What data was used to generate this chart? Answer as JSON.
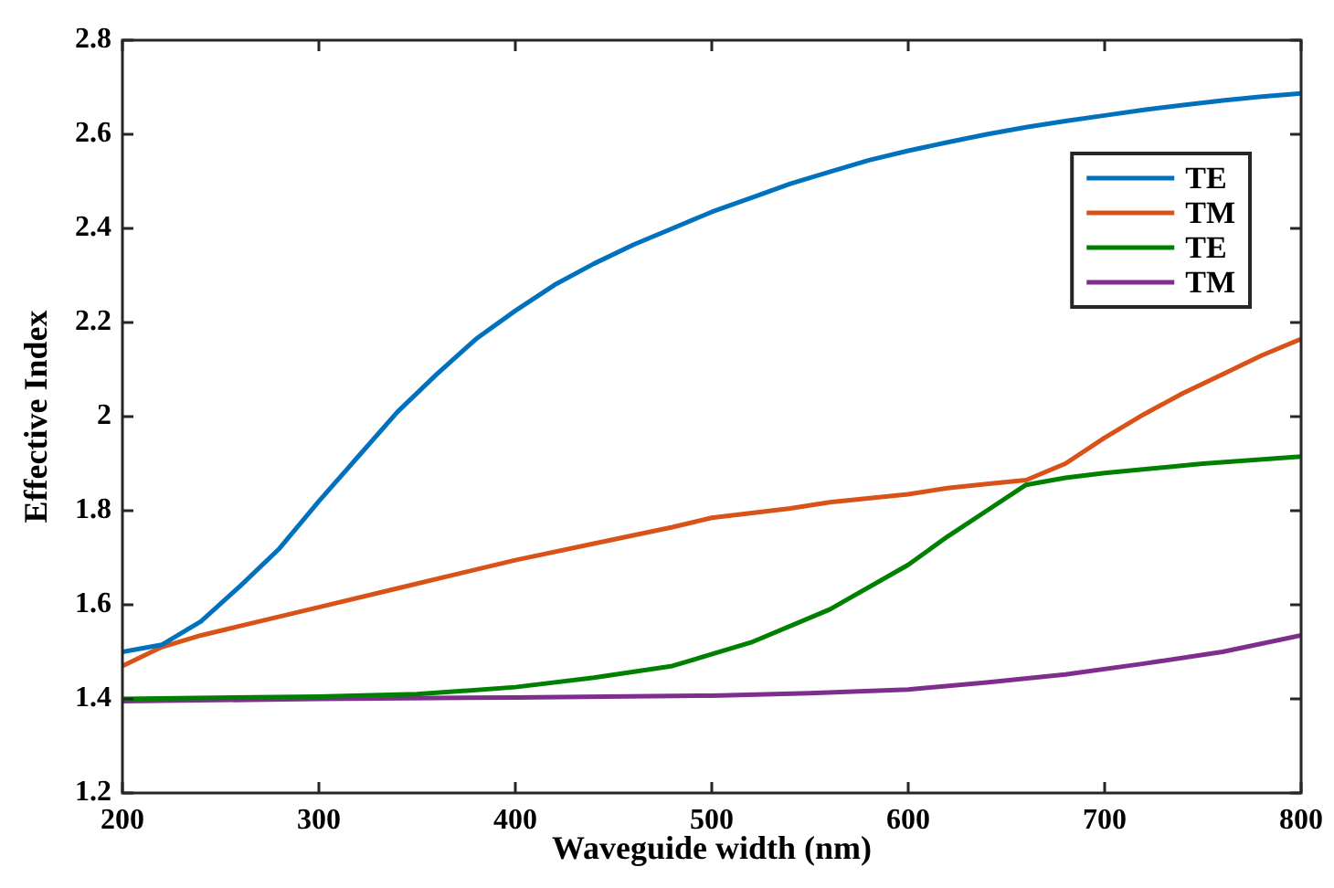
{
  "chart_data": {
    "type": "line",
    "xlabel": "Waveguide width (nm)",
    "ylabel": "Effective Index",
    "xlim": [
      200,
      800
    ],
    "xticks": [
      200,
      300,
      400,
      500,
      600,
      700,
      800
    ],
    "ylim": [
      1.2,
      2.8
    ],
    "yticks": [
      1.2,
      1.4,
      1.6,
      1.8,
      2,
      2.2,
      2.4,
      2.6,
      2.8
    ],
    "grid": false,
    "legend": "top right",
    "marker": "none",
    "line_style": "solid",
    "series": [
      {
        "name": "TE",
        "color": "#0072bd",
        "x": [
          200,
          220,
          240,
          260,
          280,
          300,
          320,
          340,
          360,
          380,
          400,
          420,
          440,
          460,
          480,
          500,
          520,
          540,
          560,
          580,
          600,
          620,
          640,
          660,
          680,
          700,
          720,
          740,
          760,
          780,
          800
        ],
        "values": [
          1.5,
          1.515,
          1.565,
          1.64,
          1.72,
          1.82,
          1.915,
          2.01,
          2.09,
          2.165,
          2.225,
          2.28,
          2.325,
          2.365,
          2.4,
          2.435,
          2.465,
          2.495,
          2.52,
          2.545,
          2.565,
          2.583,
          2.6,
          2.615,
          2.628,
          2.64,
          2.652,
          2.662,
          2.672,
          2.68,
          2.687
        ]
      },
      {
        "name": "TM",
        "color": "#d95319",
        "x": [
          200,
          220,
          240,
          260,
          280,
          300,
          340,
          400,
          440,
          480,
          500,
          540,
          560,
          600,
          620,
          640,
          660,
          680,
          700,
          720,
          740,
          760,
          780,
          800
        ],
        "values": [
          1.47,
          1.51,
          1.535,
          1.555,
          1.575,
          1.595,
          1.635,
          1.695,
          1.73,
          1.765,
          1.785,
          1.805,
          1.818,
          1.835,
          1.848,
          1.857,
          1.865,
          1.9,
          1.955,
          2.005,
          2.05,
          2.09,
          2.13,
          2.165
        ]
      },
      {
        "name": "TE",
        "color": "#008000",
        "x": [
          200,
          300,
          350,
          400,
          440,
          480,
          520,
          560,
          600,
          620,
          640,
          660,
          680,
          700,
          750,
          800
        ],
        "values": [
          1.4,
          1.405,
          1.41,
          1.425,
          1.445,
          1.47,
          1.52,
          1.59,
          1.685,
          1.745,
          1.8,
          1.855,
          1.87,
          1.88,
          1.9,
          1.915
        ]
      },
      {
        "name": "TM",
        "color": "#7e2f8e",
        "x": [
          200,
          300,
          400,
          500,
          550,
          600,
          640,
          680,
          720,
          760,
          800
        ],
        "values": [
          1.395,
          1.4,
          1.403,
          1.407,
          1.412,
          1.42,
          1.435,
          1.452,
          1.475,
          1.5,
          1.535
        ]
      }
    ]
  }
}
